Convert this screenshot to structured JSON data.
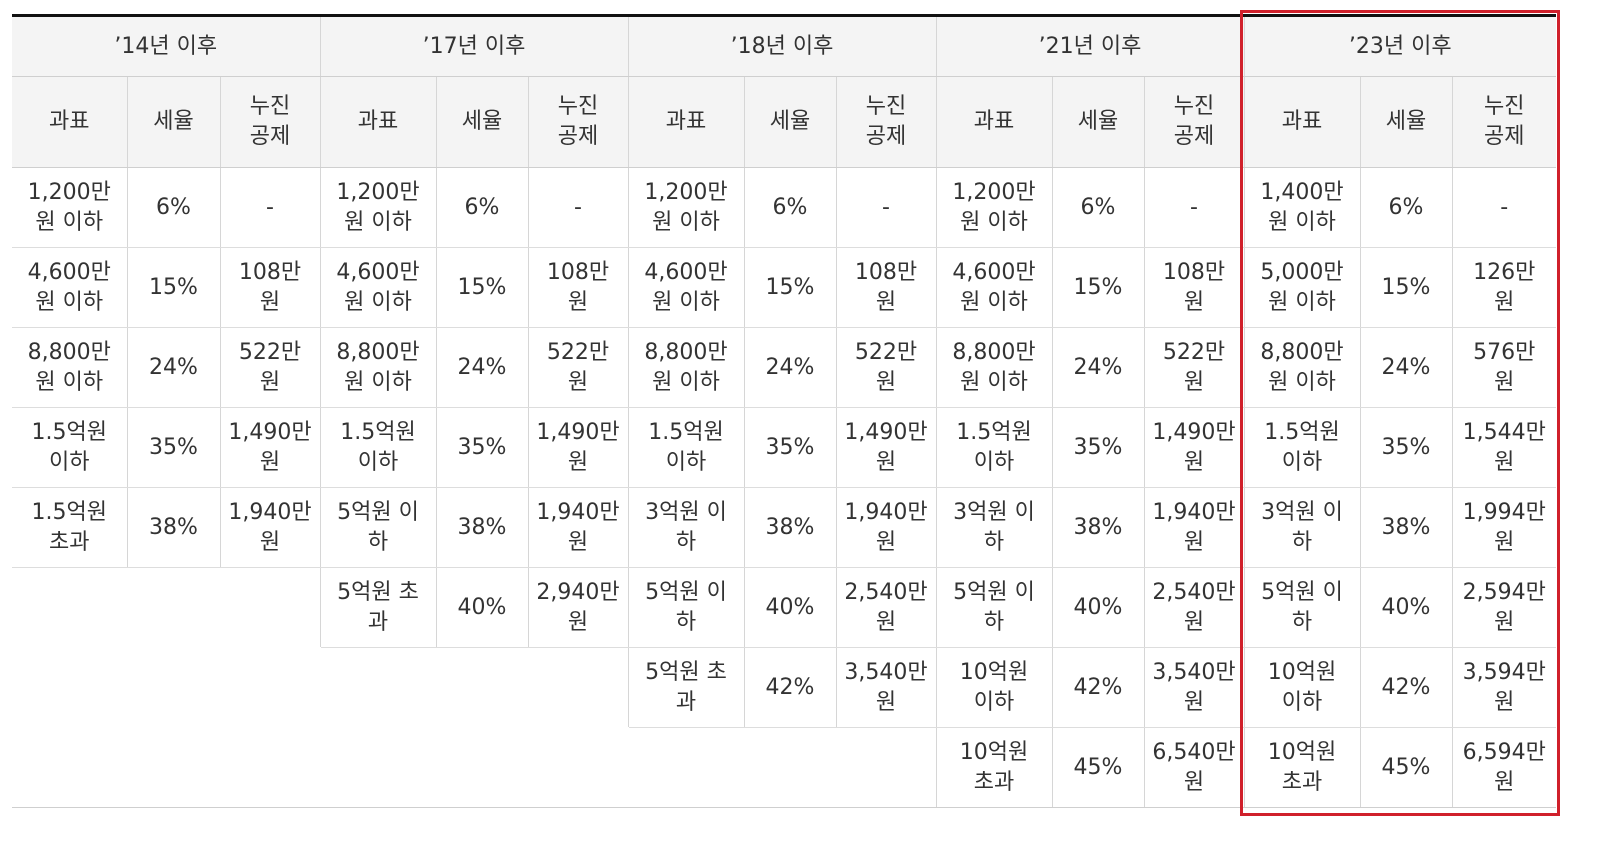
{
  "periods": [
    {
      "label": "’14년 이후",
      "columns": [
        "과표",
        "세율",
        "누진\n공제"
      ],
      "rows": [
        [
          "1,200만\n원 이하",
          "6%",
          "-"
        ],
        [
          "4,600만\n원 이하",
          "15%",
          "108만\n원"
        ],
        [
          "8,800만\n원 이하",
          "24%",
          "522만\n원"
        ],
        [
          "1.5억원\n이하",
          "35%",
          "1,490만\n원"
        ],
        [
          "1.5억원\n초과",
          "38%",
          "1,940만\n원"
        ]
      ]
    },
    {
      "label": "’17년 이후",
      "columns": [
        "과표",
        "세율",
        "누진\n공제"
      ],
      "rows": [
        [
          "1,200만\n원 이하",
          "6%",
          "-"
        ],
        [
          "4,600만\n원 이하",
          "15%",
          "108만\n원"
        ],
        [
          "8,800만\n원 이하",
          "24%",
          "522만\n원"
        ],
        [
          "1.5억원\n이하",
          "35%",
          "1,490만\n원"
        ],
        [
          "5억원 이\n하",
          "38%",
          "1,940만\n원"
        ],
        [
          "5억원 초\n과",
          "40%",
          "2,940만\n원"
        ]
      ]
    },
    {
      "label": "’18년 이후",
      "columns": [
        "과표",
        "세율",
        "누진\n공제"
      ],
      "rows": [
        [
          "1,200만\n원 이하",
          "6%",
          "-"
        ],
        [
          "4,600만\n원 이하",
          "15%",
          "108만\n원"
        ],
        [
          "8,800만\n원 이하",
          "24%",
          "522만\n원"
        ],
        [
          "1.5억원\n이하",
          "35%",
          "1,490만\n원"
        ],
        [
          "3억원 이\n하",
          "38%",
          "1,940만\n원"
        ],
        [
          "5억원 이\n하",
          "40%",
          "2,540만\n원"
        ],
        [
          "5억원 초\n과",
          "42%",
          "3,540만\n원"
        ]
      ]
    },
    {
      "label": "’21년 이후",
      "columns": [
        "과표",
        "세율",
        "누진\n공제"
      ],
      "rows": [
        [
          "1,200만\n원 이하",
          "6%",
          "-"
        ],
        [
          "4,600만\n원 이하",
          "15%",
          "108만\n원"
        ],
        [
          "8,800만\n원 이하",
          "24%",
          "522만\n원"
        ],
        [
          "1.5억원\n이하",
          "35%",
          "1,490만\n원"
        ],
        [
          "3억원 이\n하",
          "38%",
          "1,940만\n원"
        ],
        [
          "5억원 이\n하",
          "40%",
          "2,540만\n원"
        ],
        [
          "10억원\n이하",
          "42%",
          "3,540만\n원"
        ],
        [
          "10억원\n초과",
          "45%",
          "6,540만\n원"
        ]
      ]
    },
    {
      "label": "’23년 이후",
      "columns": [
        "과표",
        "세율",
        "누진\n공제"
      ],
      "rows": [
        [
          "1,400만\n원 이하",
          "6%",
          "-"
        ],
        [
          "5,000만\n원 이하",
          "15%",
          "126만\n원"
        ],
        [
          "8,800만\n원 이하",
          "24%",
          "576만\n원"
        ],
        [
          "1.5억원\n이하",
          "35%",
          "1,544만\n원"
        ],
        [
          "3억원 이\n하",
          "38%",
          "1,994만\n원"
        ],
        [
          "5억원 이\n하",
          "40%",
          "2,594만\n원"
        ],
        [
          "10억원\n이하",
          "42%",
          "3,594만\n원"
        ],
        [
          "10억원\n초과",
          "45%",
          "6,594만\n원"
        ]
      ]
    }
  ],
  "highlight": {
    "period_index": 4,
    "color": "#d0202b"
  },
  "colors": {
    "header_bg": "#f4f4f4",
    "top_rule": "#111111"
  }
}
